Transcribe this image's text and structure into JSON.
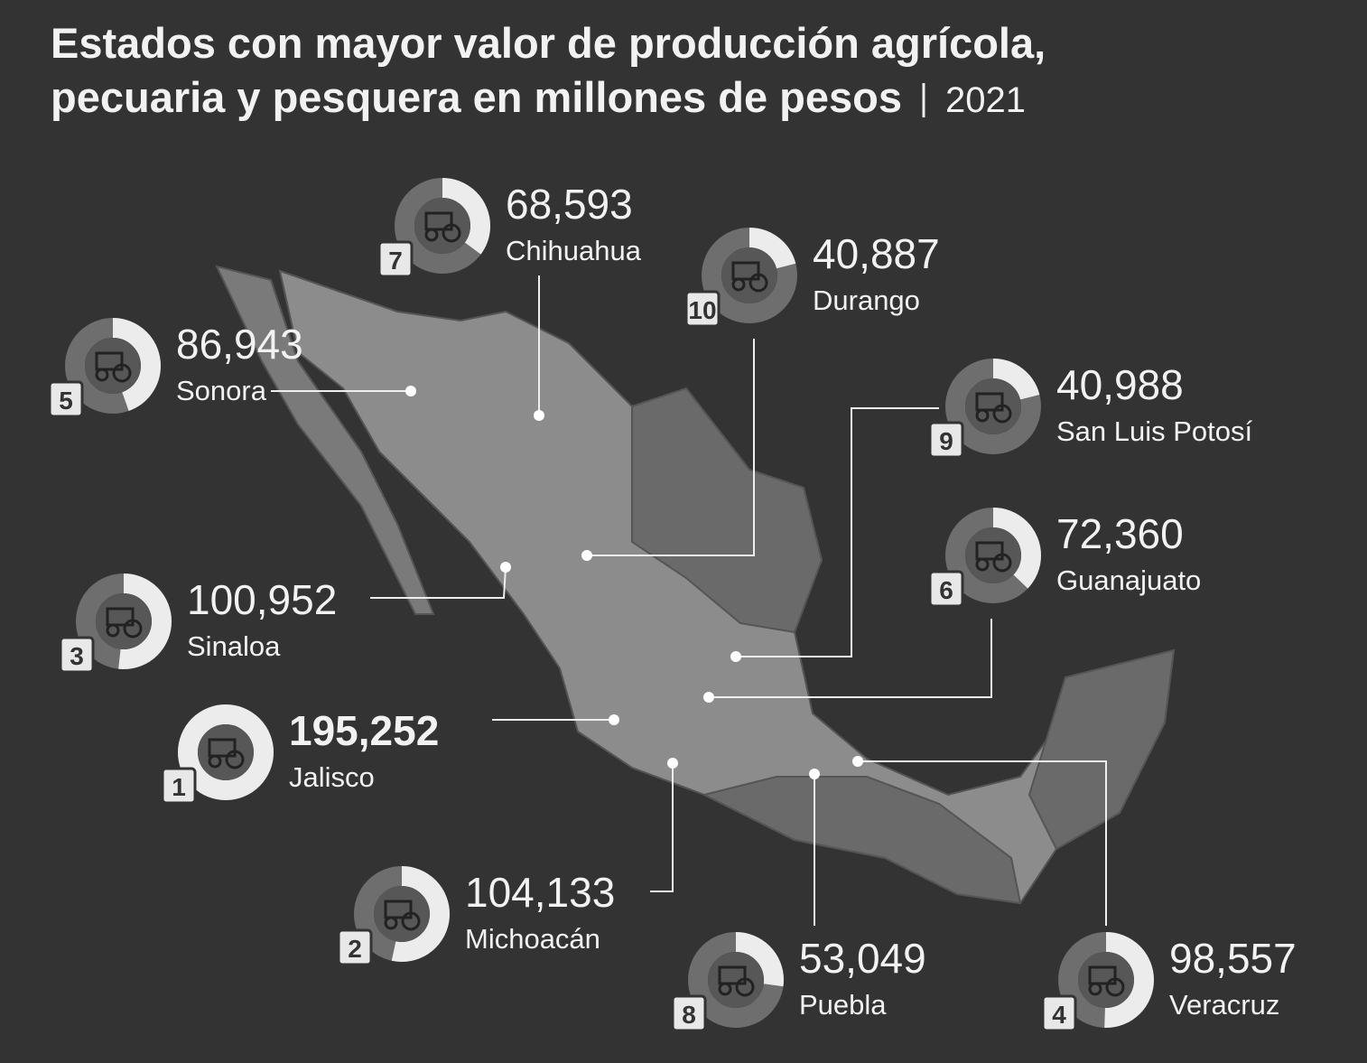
{
  "header": {
    "title_lines": [
      "Estados con mayor valor de producción agrícola,",
      "pecuaria y pesquera en millones de pesos"
    ],
    "year": "2021"
  },
  "states": [
    {
      "rank": 7,
      "value": {
        "value": 68593,
        "label": "68,593"
      },
      "name": "Chihuahua"
    },
    {
      "rank": 10,
      "value": {
        "value": 40887,
        "label": "40,887"
      },
      "name": "Durango"
    },
    {
      "rank": 5,
      "value": {
        "value": 86943,
        "label": "86,943"
      },
      "name": "Sonora"
    },
    {
      "rank": 9,
      "value": {
        "value": 40988,
        "label": "40,988"
      },
      "name": "San Luis Potosí"
    },
    {
      "rank": 6,
      "value": {
        "value": 72360,
        "label": "72,360"
      },
      "name": "Guanajuato"
    },
    {
      "rank": 3,
      "value": {
        "value": 100952,
        "label": "100,952"
      },
      "name": "Sinaloa"
    },
    {
      "rank": 1,
      "value": {
        "value": 195252,
        "label": "195,252"
      },
      "name": "Jalisco"
    },
    {
      "rank": 2,
      "value": {
        "value": 104133,
        "label": "104,133"
      },
      "name": "Michoacán"
    },
    {
      "rank": 8,
      "value": {
        "value": 53049,
        "label": "53,049"
      },
      "name": "Puebla"
    },
    {
      "rank": 4,
      "value": {
        "value": 98557,
        "label": "98,557"
      },
      "name": "Veracruz"
    }
  ]
}
